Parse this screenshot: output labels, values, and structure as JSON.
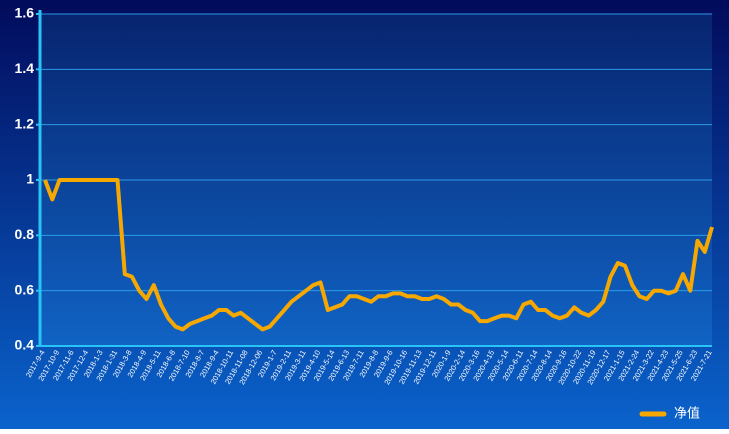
{
  "chart_data": {
    "type": "line",
    "categories": [
      "2017-9-4",
      null,
      "2017-10-9",
      null,
      "2017-11-6",
      null,
      "2017-12-4",
      null,
      "2018-1-3",
      null,
      "2018-1-31",
      null,
      "2018-3-8",
      null,
      "2018-4-9",
      null,
      "2018-5-11",
      null,
      "2018-6-8",
      null,
      "2018-7-10",
      null,
      "2018-8-7",
      null,
      "2018-9-4",
      null,
      "2018-10-11",
      null,
      "2018-11-08",
      null,
      "2018-12-06",
      null,
      "2019-1-7",
      null,
      "2019-2-11",
      null,
      "2019-3-11",
      null,
      "2019-4-10",
      null,
      "2019-5-14",
      null,
      "2019-6-13",
      null,
      "2019-7-11",
      null,
      "2019-8-8",
      null,
      "2019-9-6",
      null,
      "2019-10-16",
      null,
      "2019-11-13",
      null,
      "2019-12-11",
      null,
      "2020-1-9",
      null,
      "2020-2-14",
      null,
      "2020-3-16",
      null,
      "2020-4-15",
      null,
      "2020-5-14",
      null,
      "2020-6-11",
      null,
      "2020-7-14",
      null,
      "2020-8-14",
      null,
      "2020-9-16",
      null,
      "2020-10-22",
      null,
      "2020-11-19",
      null,
      "2020-12-17",
      null,
      "2021-1-15",
      null,
      "2021-2-24",
      null,
      "2021-3-22",
      null,
      "2021-4-23",
      null,
      "2021-5-25",
      null,
      "2021-6-23",
      null,
      "2021-7-21"
    ],
    "series": [
      {
        "name": "净值",
        "color": "#f7a800",
        "values": [
          1.0,
          0.93,
          1.0,
          1.0,
          1.0,
          1.0,
          1.0,
          1.0,
          1.0,
          1.0,
          1.0,
          0.66,
          0.65,
          0.6,
          0.57,
          0.62,
          0.55,
          0.5,
          0.47,
          0.46,
          0.48,
          0.49,
          0.5,
          0.51,
          0.53,
          0.53,
          0.51,
          0.52,
          0.5,
          0.48,
          0.46,
          0.47,
          0.5,
          0.53,
          0.56,
          0.58,
          0.6,
          0.62,
          0.63,
          0.53,
          0.54,
          0.55,
          0.58,
          0.58,
          0.57,
          0.56,
          0.58,
          0.58,
          0.59,
          0.59,
          0.58,
          0.58,
          0.57,
          0.57,
          0.58,
          0.57,
          0.55,
          0.55,
          0.53,
          0.52,
          0.49,
          0.49,
          0.5,
          0.51,
          0.51,
          0.5,
          0.55,
          0.56,
          0.53,
          0.53,
          0.51,
          0.5,
          0.51,
          0.54,
          0.52,
          0.51,
          0.53,
          0.56,
          0.65,
          0.7,
          0.69,
          0.62,
          0.58,
          0.57,
          0.6,
          0.6,
          0.59,
          0.6,
          0.66,
          0.6,
          0.78,
          0.74,
          0.83
        ]
      }
    ],
    "ylim": [
      0.4,
      1.6
    ],
    "yticks": [
      0.4,
      0.6,
      0.8,
      1,
      1.2,
      1.4,
      1.6
    ],
    "grid": true,
    "legend": "bottom-right"
  }
}
